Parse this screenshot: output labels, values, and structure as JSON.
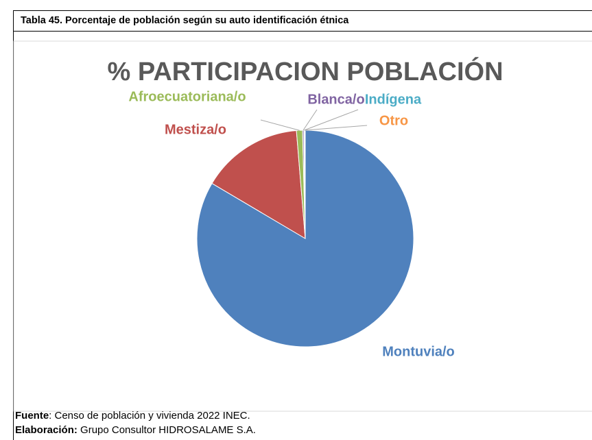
{
  "caption": "Tabla 45. Porcentaje de población según su auto identificación étnica",
  "chart_data": {
    "type": "pie",
    "title": "% PARTICIPACION POBLACIÓN",
    "categories": [
      "Montuvia/o",
      "Mestiza/o",
      "Afroecuatoriana/o",
      "Blanca/o",
      "Indígena",
      "Otro"
    ],
    "values": [
      83.5,
      15.2,
      0.9,
      0.2,
      0.1,
      0.1
    ],
    "colors": [
      "#4f81bd",
      "#c0504d",
      "#9bbb59",
      "#8064a2",
      "#4bacc6",
      "#f79646"
    ]
  },
  "source": {
    "label": "Fuente",
    "text": ": Censo de población y vivienda 2022 INEC."
  },
  "credits": {
    "label": "Elaboración:",
    "text": " Grupo Consultor HIDROSALAME S.A."
  }
}
